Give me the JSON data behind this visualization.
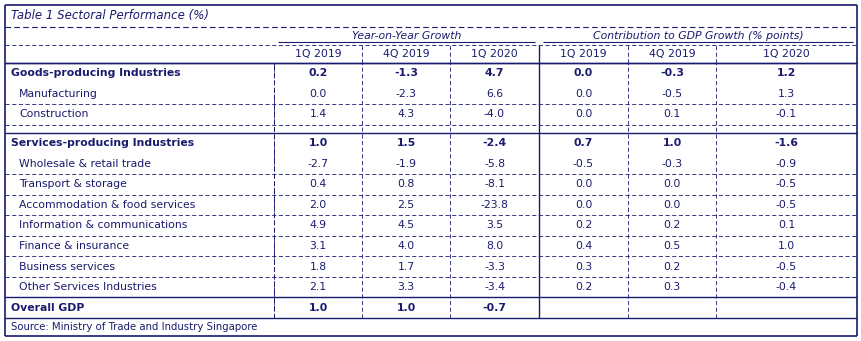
{
  "title": "Table 1 Sectoral Performance (%)",
  "source": "Source: Ministry of Trade and Industry Singapore",
  "col_headers_row2": [
    "1Q 2019",
    "4Q 2019",
    "1Q 2020",
    "1Q 2019",
    "4Q 2019",
    "1Q 2020"
  ],
  "yoy_header": "Year-on-Year Growth",
  "contrib_header": "Contribution to GDP Growth (% points)",
  "rows": [
    {
      "label": "Goods-producing Industries",
      "bold": true,
      "values": [
        "0.2",
        "-1.3",
        "4.7",
        "0.0",
        "-0.3",
        "1.2"
      ],
      "section_top": true
    },
    {
      "label": "Manufacturing",
      "bold": false,
      "values": [
        "0.0",
        "-2.3",
        "6.6",
        "0.0",
        "-0.5",
        "1.3"
      ],
      "section_top": false
    },
    {
      "label": "Construction",
      "bold": false,
      "values": [
        "1.4",
        "4.3",
        "-4.0",
        "0.0",
        "0.1",
        "-0.1"
      ],
      "section_top": false
    },
    {
      "label": "",
      "bold": false,
      "values": [
        "",
        "",
        "",
        "",
        "",
        ""
      ],
      "section_top": false,
      "spacer": true
    },
    {
      "label": "Services-producing Industries",
      "bold": true,
      "values": [
        "1.0",
        "1.5",
        "-2.4",
        "0.7",
        "1.0",
        "-1.6"
      ],
      "section_top": true
    },
    {
      "label": "Wholesale & retail trade",
      "bold": false,
      "values": [
        "-2.7",
        "-1.9",
        "-5.8",
        "-0.5",
        "-0.3",
        "-0.9"
      ],
      "section_top": false
    },
    {
      "label": "Transport & storage",
      "bold": false,
      "values": [
        "0.4",
        "0.8",
        "-8.1",
        "0.0",
        "0.0",
        "-0.5"
      ],
      "section_top": false
    },
    {
      "label": "Accommodation & food services",
      "bold": false,
      "values": [
        "2.0",
        "2.5",
        "-23.8",
        "0.0",
        "0.0",
        "-0.5"
      ],
      "section_top": false
    },
    {
      "label": "Information & communications",
      "bold": false,
      "values": [
        "4.9",
        "4.5",
        "3.5",
        "0.2",
        "0.2",
        "0.1"
      ],
      "section_top": false
    },
    {
      "label": "Finance & insurance",
      "bold": false,
      "values": [
        "3.1",
        "4.0",
        "8.0",
        "0.4",
        "0.5",
        "1.0"
      ],
      "section_top": false
    },
    {
      "label": "Business services",
      "bold": false,
      "values": [
        "1.8",
        "1.7",
        "-3.3",
        "0.3",
        "0.2",
        "-0.5"
      ],
      "section_top": false
    },
    {
      "label": "Other Services Industries",
      "bold": false,
      "values": [
        "2.1",
        "3.3",
        "-3.4",
        "0.2",
        "0.3",
        "-0.4"
      ],
      "section_top": false
    },
    {
      "label": "Overall GDP",
      "bold": true,
      "values": [
        "1.0",
        "1.0",
        "-0.7",
        "",
        "",
        ""
      ],
      "section_top": true
    }
  ],
  "background_color": "#ffffff",
  "text_color": "#1a1a6e",
  "border_color": "#1a1a6e",
  "font_size": 7.8,
  "title_font_size": 8.5,
  "header_font_size": 7.8
}
